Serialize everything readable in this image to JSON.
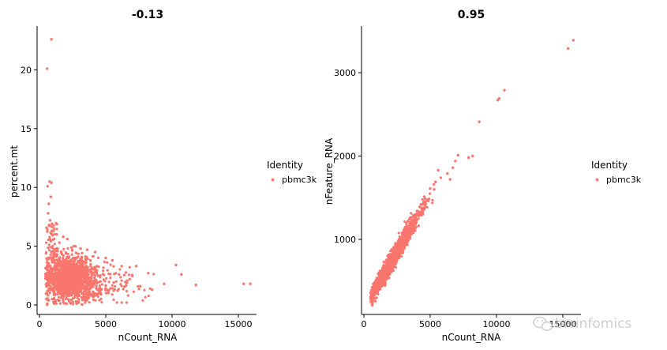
{
  "colors": {
    "point": "#F8766D",
    "axis": "#000000",
    "background": "#ffffff"
  },
  "watermark": {
    "text": "bioinfomics",
    "icon": "wechat-icon"
  },
  "chart_data": [
    {
      "type": "scatter",
      "title": "-0.13",
      "xlabel": "nCount_RNA",
      "ylabel": "percent.mt",
      "xlim": [
        0,
        16500
      ],
      "ylim": [
        -1.2,
        23.5
      ],
      "xticks": [
        0,
        5000,
        10000,
        15000
      ],
      "xtick_labels": [
        "0",
        "5000",
        "10000",
        "15000"
      ],
      "yticks": [
        0,
        5,
        10,
        15,
        20
      ],
      "ytick_labels": [
        "0",
        "5",
        "10",
        "15",
        "20"
      ],
      "grid": false,
      "legend": {
        "title": "Identity",
        "entries": [
          "pbmc3k"
        ],
        "position": "right"
      },
      "series": [
        {
          "name": "pbmc3k",
          "points": [
            [
              900,
              22.6
            ],
            [
              580,
              20.1
            ],
            [
              760,
              10.5
            ],
            [
              900,
              10.4
            ],
            [
              620,
              10.1
            ],
            [
              850,
              9.2
            ],
            [
              700,
              8.6
            ],
            [
              650,
              7.8
            ],
            [
              800,
              7.2
            ],
            [
              950,
              6.9
            ],
            [
              1100,
              6.5
            ],
            [
              600,
              6.3
            ],
            [
              1300,
              6.0
            ],
            [
              1800,
              5.8
            ],
            [
              2100,
              5.6
            ],
            [
              1500,
              5.3
            ],
            [
              2600,
              5.0
            ],
            [
              3100,
              4.8
            ],
            [
              3600,
              4.7
            ],
            [
              4200,
              4.5
            ],
            [
              5000,
              4.0
            ],
            [
              5500,
              3.8
            ],
            [
              6200,
              3.3
            ],
            [
              7300,
              3.3
            ],
            [
              8200,
              2.7
            ],
            [
              9400,
              1.8
            ],
            [
              10300,
              3.4
            ],
            [
              10700,
              2.6
            ],
            [
              11800,
              1.7
            ],
            [
              15400,
              1.8
            ],
            [
              15900,
              1.8
            ],
            [
              8500,
              1.3
            ],
            [
              7600,
              1.6
            ],
            [
              6800,
              2.2
            ],
            [
              6000,
              2.6
            ],
            [
              5600,
              1.9
            ],
            [
              4800,
              2.9
            ],
            [
              4300,
              1.6
            ],
            [
              3900,
              0.9
            ],
            [
              600,
              0.1
            ],
            [
              700,
              0.4
            ],
            [
              1200,
              0.3
            ],
            [
              550,
              1.0
            ]
          ]
        }
      ]
    },
    {
      "type": "scatter",
      "title": "0.95",
      "xlabel": "nCount_RNA",
      "ylabel": "nFeature_RNA",
      "xlim": [
        0,
        16500
      ],
      "ylim": [
        100,
        3550
      ],
      "xticks": [
        0,
        5000,
        10000,
        15000
      ],
      "xtick_labels": [
        "0",
        "5000",
        "10000",
        "15000"
      ],
      "yticks": [
        1000,
        2000,
        3000
      ],
      "ytick_labels": [
        "1000",
        "2000",
        "3000"
      ],
      "grid": false,
      "legend": {
        "title": "Identity",
        "entries": [
          "pbmc3k"
        ],
        "position": "right"
      },
      "series": [
        {
          "name": "pbmc3k",
          "points": [
            [
              15800,
              3390
            ],
            [
              15400,
              3290
            ],
            [
              10600,
              2790
            ],
            [
              10200,
              2690
            ],
            [
              10100,
              2670
            ],
            [
              8700,
              2410
            ],
            [
              8200,
              2000
            ],
            [
              7900,
              1980
            ],
            [
              7100,
              2010
            ],
            [
              6900,
              1940
            ],
            [
              6700,
              1860
            ],
            [
              6500,
              1720
            ],
            [
              6300,
              1790
            ],
            [
              5600,
              1830
            ],
            [
              5300,
              1600
            ],
            [
              5000,
              1610
            ],
            [
              4800,
              1480
            ],
            [
              4500,
              1380
            ],
            [
              4200,
              1390
            ],
            [
              3900,
              1300
            ],
            [
              3600,
              1200
            ],
            [
              3300,
              1150
            ],
            [
              3000,
              1090
            ],
            [
              2700,
              1000
            ],
            [
              2400,
              950
            ],
            [
              2100,
              880
            ],
            [
              1800,
              800
            ],
            [
              1500,
              730
            ],
            [
              1200,
              620
            ],
            [
              900,
              500
            ],
            [
              700,
              390
            ],
            [
              600,
              250
            ],
            [
              620,
              220
            ],
            [
              800,
              330
            ],
            [
              1000,
              430
            ],
            [
              1300,
              560
            ],
            [
              1600,
              670
            ],
            [
              2000,
              760
            ],
            [
              2300,
              860
            ],
            [
              2600,
              960
            ],
            [
              2900,
              1050
            ],
            [
              3200,
              1130
            ],
            [
              3500,
              1180
            ],
            [
              3700,
              1270
            ],
            [
              4000,
              1340
            ],
            [
              4300,
              1420
            ],
            [
              4600,
              1490
            ],
            [
              5400,
              1690
            ],
            [
              5800,
              1740
            ]
          ]
        }
      ]
    }
  ]
}
